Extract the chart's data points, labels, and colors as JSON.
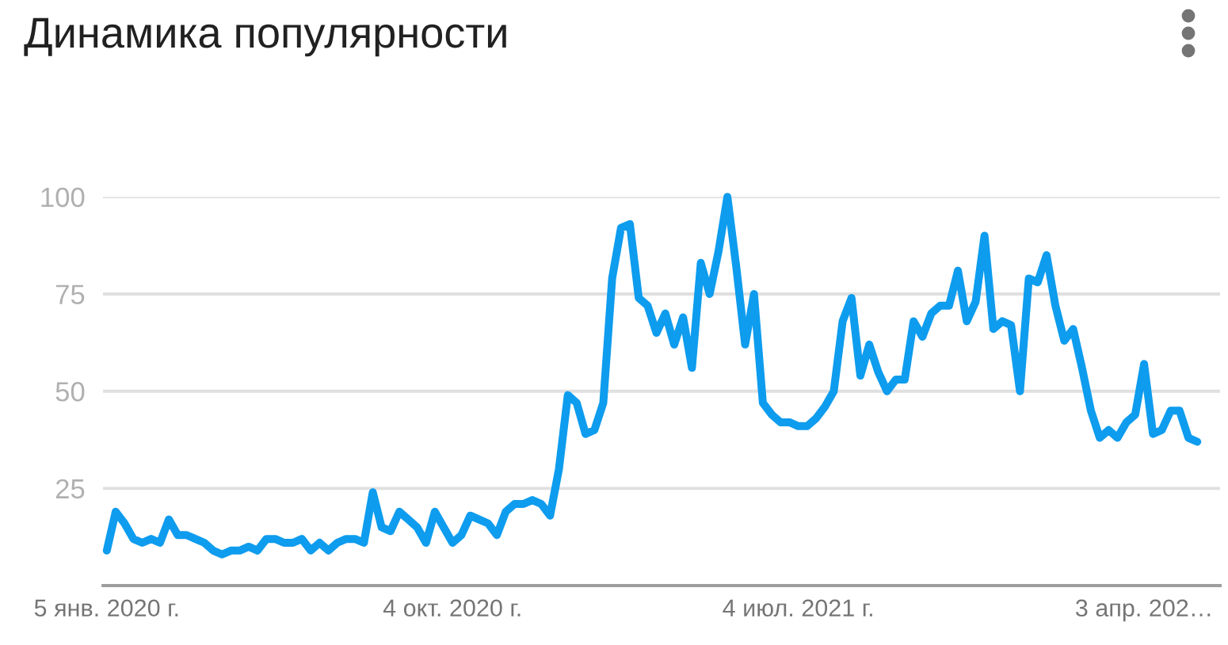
{
  "chart_data": {
    "type": "line",
    "title": "Динамика популярности",
    "x": [
      "2020-01-05",
      "2020-01-12",
      "2020-01-19",
      "2020-01-26",
      "2020-02-02",
      "2020-02-09",
      "2020-02-16",
      "2020-02-23",
      "2020-03-01",
      "2020-03-08",
      "2020-03-15",
      "2020-03-22",
      "2020-03-29",
      "2020-04-05",
      "2020-04-12",
      "2020-04-19",
      "2020-04-26",
      "2020-05-03",
      "2020-05-10",
      "2020-05-17",
      "2020-05-24",
      "2020-05-31",
      "2020-06-07",
      "2020-06-14",
      "2020-06-21",
      "2020-06-28",
      "2020-07-05",
      "2020-07-12",
      "2020-07-19",
      "2020-07-26",
      "2020-08-02",
      "2020-08-09",
      "2020-08-16",
      "2020-08-23",
      "2020-08-30",
      "2020-09-06",
      "2020-09-13",
      "2020-09-20",
      "2020-09-27",
      "2020-10-04",
      "2020-10-11",
      "2020-10-18",
      "2020-10-25",
      "2020-11-01",
      "2020-11-08",
      "2020-11-15",
      "2020-11-22",
      "2020-11-29",
      "2020-12-06",
      "2020-12-13",
      "2020-12-20",
      "2020-12-27",
      "2021-01-03",
      "2021-01-10",
      "2021-01-17",
      "2021-01-24",
      "2021-01-31",
      "2021-02-07",
      "2021-02-14",
      "2021-02-21",
      "2021-02-28",
      "2021-03-07",
      "2021-03-14",
      "2021-03-21",
      "2021-03-28",
      "2021-04-04",
      "2021-04-11",
      "2021-04-18",
      "2021-04-25",
      "2021-05-02",
      "2021-05-09",
      "2021-05-16",
      "2021-05-23",
      "2021-05-30",
      "2021-06-06",
      "2021-06-13",
      "2021-06-20",
      "2021-06-27",
      "2021-07-04",
      "2021-07-11",
      "2021-07-18",
      "2021-07-25",
      "2021-08-01",
      "2021-08-08",
      "2021-08-15",
      "2021-08-22",
      "2021-08-29",
      "2021-09-05",
      "2021-09-12",
      "2021-09-19",
      "2021-09-26",
      "2021-10-03",
      "2021-10-10",
      "2021-10-17",
      "2021-10-24",
      "2021-10-31",
      "2021-11-07",
      "2021-11-14",
      "2021-11-21",
      "2021-11-28",
      "2021-12-05",
      "2021-12-12",
      "2021-12-19",
      "2021-12-26",
      "2022-01-02",
      "2022-01-09",
      "2022-01-16",
      "2022-01-23",
      "2022-01-30",
      "2022-02-06",
      "2022-02-13",
      "2022-02-20",
      "2022-02-27",
      "2022-03-06",
      "2022-03-13",
      "2022-03-20",
      "2022-03-27",
      "2022-04-03",
      "2022-04-10",
      "2022-04-17",
      "2022-04-24",
      "2022-05-01",
      "2022-05-08",
      "2022-05-15"
    ],
    "series": [
      {
        "color": "#0e9cee",
        "values": [
          9,
          19,
          16,
          12,
          11,
          12,
          11,
          17,
          13,
          13,
          12,
          11,
          9,
          8,
          9,
          9,
          10,
          9,
          12,
          12,
          11,
          11,
          12,
          9,
          11,
          9,
          11,
          12,
          12,
          11,
          24,
          15,
          14,
          19,
          17,
          15,
          11,
          19,
          15,
          11,
          13,
          18,
          17,
          16,
          13,
          19,
          21,
          21,
          22,
          21,
          18,
          30,
          49,
          47,
          39,
          40,
          47,
          79,
          92,
          93,
          74,
          72,
          65,
          70,
          62,
          69,
          56,
          83,
          75,
          86,
          100,
          82,
          62,
          75,
          47,
          44,
          42,
          42,
          41,
          41,
          43,
          46,
          50,
          68,
          74,
          54,
          62,
          55,
          50,
          53,
          53,
          68,
          64,
          70,
          72,
          72,
          81,
          68,
          73,
          90,
          66,
          68,
          67,
          50,
          79,
          78,
          85,
          72,
          63,
          66,
          56,
          45,
          38,
          40,
          38,
          42,
          44,
          57,
          39,
          40,
          45,
          45,
          38,
          37
        ]
      }
    ],
    "xlim": [
      "2020-01-02",
      "2022-06-02"
    ],
    "xticks": [
      {
        "value": "2020-01-05",
        "label": "5 янв. 2020 г."
      },
      {
        "value": "2020-10-04",
        "label": "4 окт. 2020 г."
      },
      {
        "value": "2021-07-04",
        "label": "4 июл. 2021 г."
      },
      {
        "value": "2022-04-03",
        "label": "3 апр. 202…"
      }
    ],
    "ylim": [
      0,
      100
    ],
    "yticks": [
      25,
      50,
      75,
      100
    ],
    "grid": "y",
    "line_style": "solid"
  }
}
